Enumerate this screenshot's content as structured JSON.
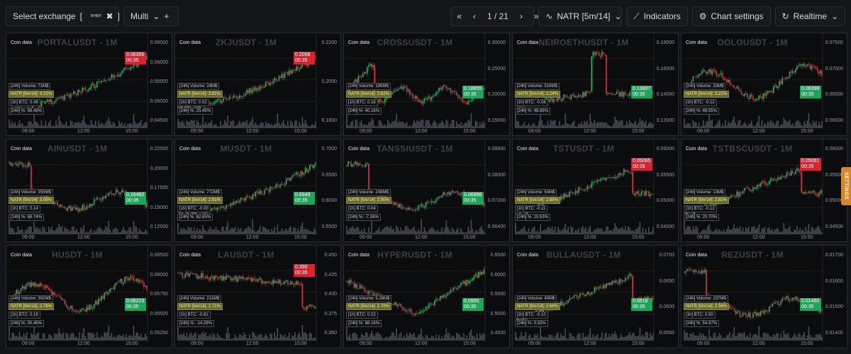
{
  "toolbar": {
    "exchange_label": "Select exchange",
    "exchange_bracket_open": "[",
    "exchange_bracket_close": "]",
    "exchange_name": "BYBIT",
    "exchange_clear": "✖",
    "mode_label": "Multi",
    "mode_add": "+",
    "first_page": "«",
    "prev_page": "‹",
    "page_indicator": "1 / 21",
    "next_page": "›",
    "last_page": "»",
    "indicator_select": "NATR [5m/14]",
    "indicators_label": "Indicators",
    "chart_settings_label": "Chart settings",
    "realtime_label": "Realtime"
  },
  "side_tab": "SETTINGS",
  "panel_common": {
    "coin_data_label": "Coin data",
    "times": [
      "09:00",
      "12:00",
      "15:00"
    ],
    "countdown": "00:35"
  },
  "panels": [
    {
      "symbol": "PORTALUSDT - 1M",
      "volume": "[24h] Volume: 71M$",
      "natr": "NATR [5m/14]: 4.22%",
      "btc": "[1h] BTC: 0.49",
      "change": "[24h] %: 56.48%",
      "price": "0.06356",
      "dir": "down",
      "axis": [
        "0.06500",
        "0.06000",
        "0.05500",
        "0.05000",
        "0.04500"
      ],
      "trend": "up"
    },
    {
      "symbol": "ZKJUSDT - 1M",
      "volume": "[24h] Volume: 24M$",
      "natr": "NATR [5m/14]: 3.81%",
      "btc": "[1h] BTC: 0.02",
      "change": "[24h] %: 25.45%",
      "price": "0.2068",
      "dir": "down",
      "axis": [
        "0.2200",
        "0.2000",
        "0.1800"
      ],
      "trend": "up"
    },
    {
      "symbol": "CROSSUSDT - 1M",
      "volume": "[24h] Volume: 196M$",
      "natr": "NATR [5m/14]: 3.62%",
      "btc": "[1h] BTC: 0.16",
      "change": "[24h] %: 40.16%",
      "price": "0.18855",
      "dir": "up",
      "axis": [
        "0.30000",
        "0.25000",
        "0.20000",
        "0.15000"
      ],
      "trend": "spike"
    },
    {
      "symbol": "NEIROETHUSDT - 1M",
      "volume": "[24h] Volume: 319M$",
      "natr": "NATR [5m/14]: 3.24%",
      "btc": "[1h] BTC: -0.08",
      "change": "[24h] %: 46.88%",
      "price": "0.13807",
      "dir": "up",
      "axis": [
        "0.18000",
        "0.16000",
        "0.14000",
        "0.12000"
      ],
      "trend": "pump"
    },
    {
      "symbol": "OOLOUSDT - 1M",
      "volume": "[24h] Volume: 33M$",
      "natr": "NATR [5m/14]: 3.21%",
      "btc": "[1h] BTC: -0.12",
      "change": "[24h] %: 48.55%",
      "price": "0.06398",
      "dir": "up",
      "axis": [
        "0.07500",
        "0.07000",
        "0.06500",
        "0.06000"
      ],
      "trend": "volatile"
    },
    {
      "symbol": "AINUSDT - 1M",
      "volume": "[24h] Volume: 355M$",
      "natr": "NATR [5m/14]: 3.09%",
      "btc": "[1h] BTC: 0.14",
      "change": "[24h] %: 68.74%",
      "price": "0.16460",
      "dir": "up",
      "axis": [
        "0.22500",
        "0.20000",
        "0.17500",
        "0.15000",
        "0.12500"
      ],
      "trend": "dump"
    },
    {
      "symbol": "MUSDT - 1M",
      "volume": "[24h] Volume: 772M$",
      "natr": "NATR [5m/14]: 2.91%",
      "btc": "[1h] BTC: -0.00",
      "change": "[24h] %: 62.65%",
      "price": "0.6949",
      "dir": "up",
      "axis": [
        "0.7000",
        "0.6500",
        "0.6000",
        "0.5500"
      ],
      "trend": "up"
    },
    {
      "symbol": "TANSSIUSDT - 1M",
      "volume": "[24h] Volume: 248M$",
      "natr": "NATR [5m/14]: 2.90%",
      "btc": "[1h] BTC: 0.04",
      "change": "[24h] %: -7.26%",
      "price": "0.06888",
      "dir": "up",
      "axis": [
        "0.08800",
        "0.08000",
        "0.07200",
        "0.06400"
      ],
      "trend": "dump"
    },
    {
      "symbol": "TSTUSDT - 1M",
      "volume": "[24h] Volume: 54M$",
      "natr": "NATR [5m/14]: 2.88%",
      "btc": "[1h] BTC: -0.11",
      "change": "[24h] %: 20.53%",
      "price": "0.05065",
      "dir": "down",
      "axis": [
        "0.06000",
        "0.05500",
        "0.05000",
        "0.04500"
      ],
      "trend": "upthendrop"
    },
    {
      "symbol": "TSTBSCUSDT - 1M",
      "volume": "[24h] Volume: 13M$",
      "natr": "NATR [5m/14]: 2.82%",
      "btc": "[1h] BTC: -0.12",
      "change": "[24h] %: 20.70%",
      "price": "0.05061",
      "dir": "down",
      "axis": [
        "0.06000",
        "0.05500",
        "0.05000",
        "0.04500"
      ],
      "trend": "upthendrop"
    },
    {
      "symbol": "HUSDT - 1M",
      "volume": "[24h] Volume: 392M$",
      "natr": "NATR [5m/14]: 2.78%",
      "btc": "[1h] BTC: 0.19",
      "change": "[24h] %: 30.46%",
      "price": "0.06223",
      "dir": "up",
      "axis": [
        "0.06500",
        "0.06000",
        "0.05750",
        "0.05500",
        "0.05250"
      ],
      "trend": "volatile"
    },
    {
      "symbol": "LAUSDT - 1M",
      "volume": "[24h] Volume: 211M$",
      "natr": "NATR [5m/14]: 2.71%",
      "btc": "[1h] BTC: -0.61",
      "change": "[24h] %: -14.29%",
      "price": "0.390",
      "dir": "down",
      "axis": [
        "0.450",
        "0.425",
        "0.400",
        "0.375",
        "0.350"
      ],
      "trend": "flatdrop"
    },
    {
      "symbol": "HYPERUSDT - 1M",
      "volume": "[24h] Volume: 5.28M$",
      "natr": "NATR [5m/14]: 2.70%",
      "btc": "[1h] BTC: 0.02",
      "change": "[24h] %: 88.16%",
      "price": "0.5900",
      "dir": "up",
      "axis": [
        "0.6500",
        "0.6000",
        "0.5500",
        "0.5000",
        "0.4500"
      ],
      "trend": "vshape"
    },
    {
      "symbol": "BULLAUSDT - 1M",
      "volume": "[24h] Volume: 40M$",
      "natr": "NATR [5m/14]: 2.66%",
      "btc": "[1h] BTC: -0.10",
      "change": "[24h] %: 0.32%",
      "price": "0.0618",
      "dir": "up",
      "axis": [
        "0.0700",
        "0.0650",
        "0.0600",
        "0.0550"
      ],
      "trend": "upthendrop"
    },
    {
      "symbol": "REZUSDT - 1M",
      "volume": "[24h] Volume: 157M$",
      "natr": "NATR [5m/14]: 2.56%",
      "btc": "[1h] BTC: 0.50",
      "change": "[24h] %: 54.97%",
      "price": "0.01450",
      "dir": "up",
      "axis": [
        "0.01700",
        "0.01600",
        "0.01500",
        "0.01400"
      ],
      "trend": "dump"
    }
  ]
}
